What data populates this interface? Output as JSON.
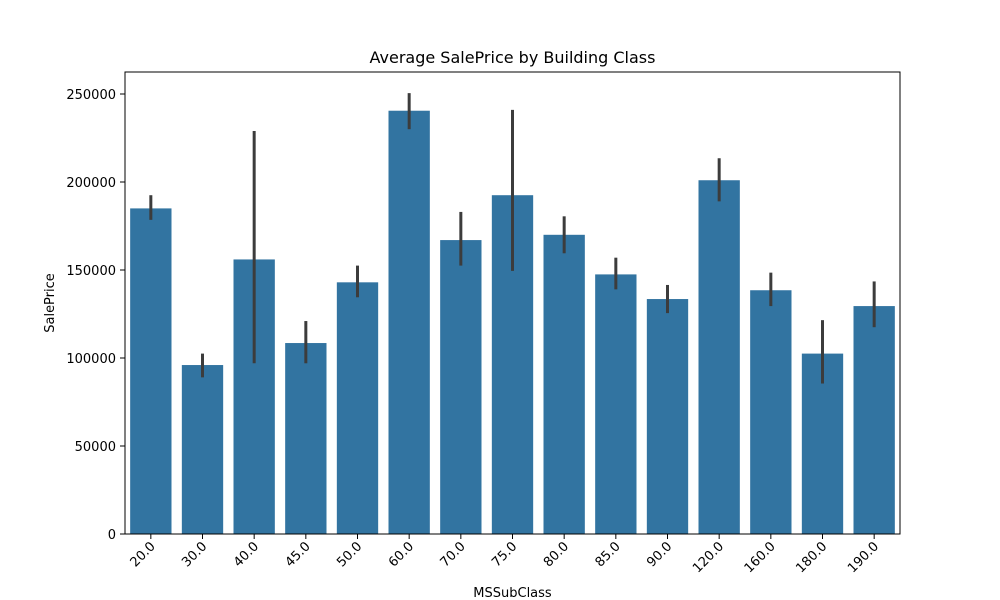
{
  "chart_data": {
    "type": "bar",
    "title": "Average SalePrice by Building Class",
    "xlabel": "MSSubClass",
    "ylabel": "SalePrice",
    "categories": [
      "20.0",
      "30.0",
      "40.0",
      "45.0",
      "50.0",
      "60.0",
      "70.0",
      "75.0",
      "80.0",
      "85.0",
      "90.0",
      "120.0",
      "160.0",
      "180.0",
      "190.0"
    ],
    "values": [
      185000,
      96000,
      156000,
      108500,
      143000,
      240500,
      167000,
      192500,
      170000,
      147500,
      133500,
      201000,
      138500,
      102500,
      129500
    ],
    "error_low": [
      178500,
      89000,
      97000,
      97000,
      134500,
      230000,
      152500,
      149500,
      159500,
      139000,
      125500,
      189000,
      129500,
      85500,
      117500
    ],
    "error_high": [
      192500,
      102500,
      229000,
      121000,
      152500,
      250500,
      183000,
      241000,
      180500,
      157000,
      141500,
      213500,
      148500,
      121500,
      143500
    ],
    "yticks": [
      0,
      50000,
      100000,
      150000,
      200000,
      250000
    ],
    "ylim": [
      0,
      250000
    ],
    "grid": false,
    "bar_color": "#3274a1",
    "errorbar_color": "#3c3c3c"
  }
}
